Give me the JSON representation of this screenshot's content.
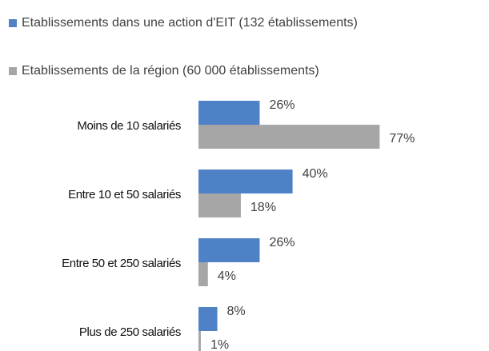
{
  "chart_data": {
    "type": "bar",
    "orientation": "horizontal",
    "categories": [
      "Moins de 10 salariés",
      "Entre 10 et 50 salariés",
      "Entre 50 et 250 salariés",
      "Plus de 250 salariés"
    ],
    "series": [
      {
        "name": "Etablissements dans une action d'EIT (132 établissements)",
        "color": "#4f81c7",
        "values": [
          26,
          40,
          26,
          8
        ],
        "value_labels": [
          "26%",
          "40%",
          "26%",
          "8%"
        ]
      },
      {
        "name": "Etablissements de la région (60 000 établissements)",
        "color": "#a6a6a6",
        "values": [
          77,
          18,
          4,
          1
        ],
        "value_labels": [
          "77%",
          "18%",
          "4%",
          "1%"
        ]
      }
    ],
    "xlim": [
      0,
      100
    ],
    "legend": "top"
  }
}
